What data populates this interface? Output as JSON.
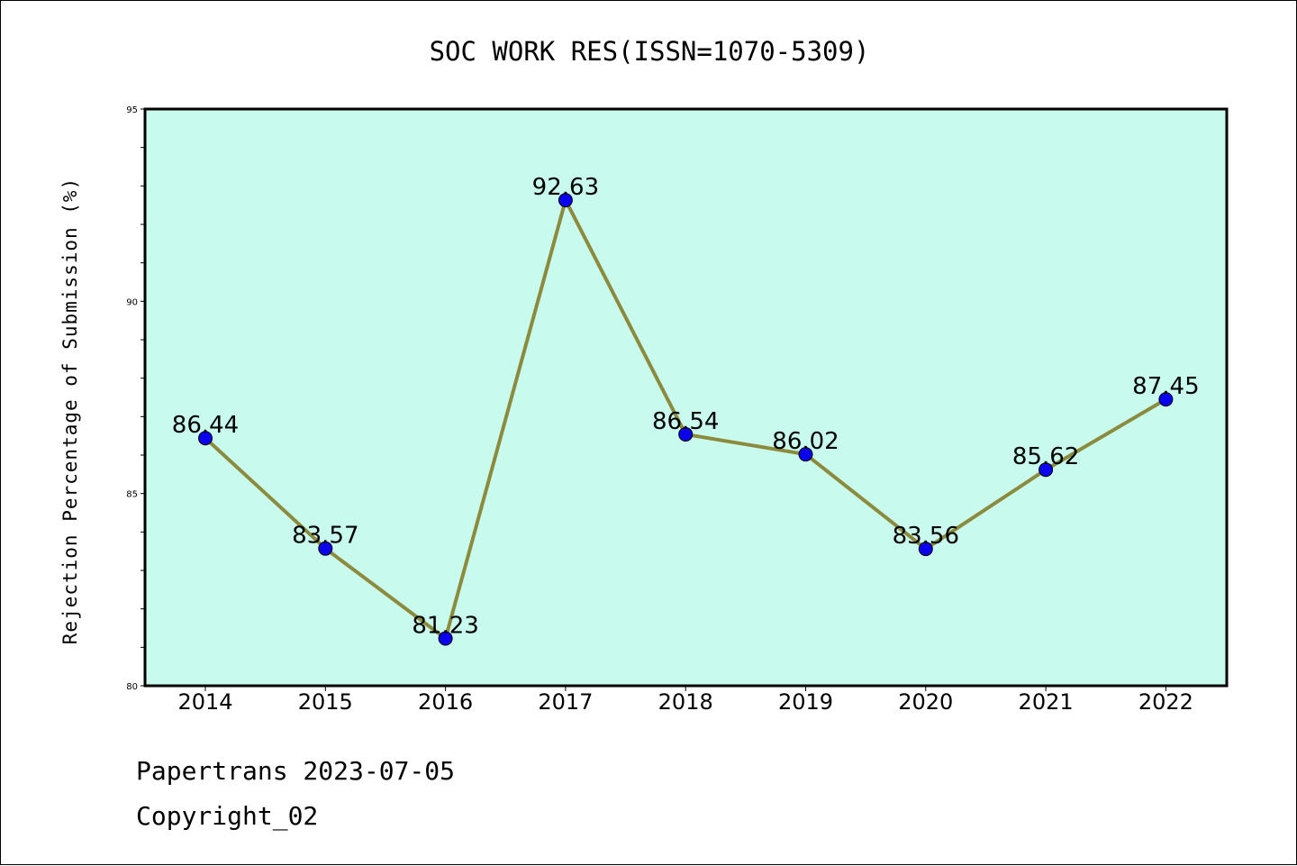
{
  "chart_data": {
    "type": "line",
    "title": "SOC WORK RES(ISSN=1070-5309)",
    "xlabel": "",
    "ylabel": "Rejection Percentage of Submission (%)",
    "categories": [
      "2014",
      "2015",
      "2016",
      "2017",
      "2018",
      "2019",
      "2020",
      "2021",
      "2022"
    ],
    "values": [
      86.44,
      83.57,
      81.23,
      92.63,
      86.54,
      86.02,
      83.56,
      85.62,
      87.45
    ],
    "data_labels": [
      "86.44",
      "83.57",
      "81.23",
      "92.63",
      "86.54",
      "86.02",
      "83.56",
      "85.62",
      "87.45"
    ],
    "ylim": [
      80,
      95
    ],
    "yticks": [
      80,
      85,
      90,
      95
    ],
    "ytick_labels": [
      "80",
      "85",
      "90",
      "95"
    ],
    "yminor_step": 1,
    "grid": false,
    "legend": "none",
    "colors": {
      "plot_background": "#c8fbee",
      "line": "#8c8a3c",
      "marker": "#0a00ee",
      "axis": "#000000"
    }
  },
  "footer": {
    "line1": "Papertrans 2023-07-05",
    "line2": "Copyright_02"
  }
}
